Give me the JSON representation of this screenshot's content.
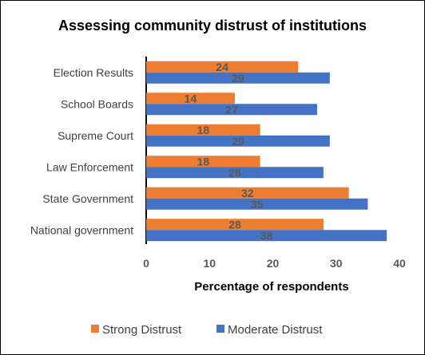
{
  "chart_data": {
    "type": "bar",
    "orientation": "horizontal",
    "title": "Assessing community distrust of institutions",
    "xlabel": "Percentage of respondents",
    "ylabel": "",
    "categories": [
      "Election Results",
      "School Boards",
      "Supreme Court",
      "Law Enforcement",
      "State Government",
      "National government"
    ],
    "series": [
      {
        "name": "Strong Distrust",
        "color": "#ED7D31",
        "values": [
          24,
          14,
          18,
          18,
          32,
          28
        ]
      },
      {
        "name": "Moderate Distrust",
        "color": "#4472C4",
        "values": [
          29,
          27,
          29,
          28,
          35,
          38
        ]
      }
    ],
    "data_labels": [
      [
        "24",
        "14",
        "18",
        "18",
        "32",
        "28"
      ],
      [
        "29",
        "27",
        "29",
        "28",
        "35",
        "38"
      ]
    ],
    "xlim": [
      0,
      40
    ],
    "xticks": [
      "0",
      "10",
      "20",
      "30",
      "40"
    ],
    "grid": false,
    "legend_position": "bottom"
  }
}
